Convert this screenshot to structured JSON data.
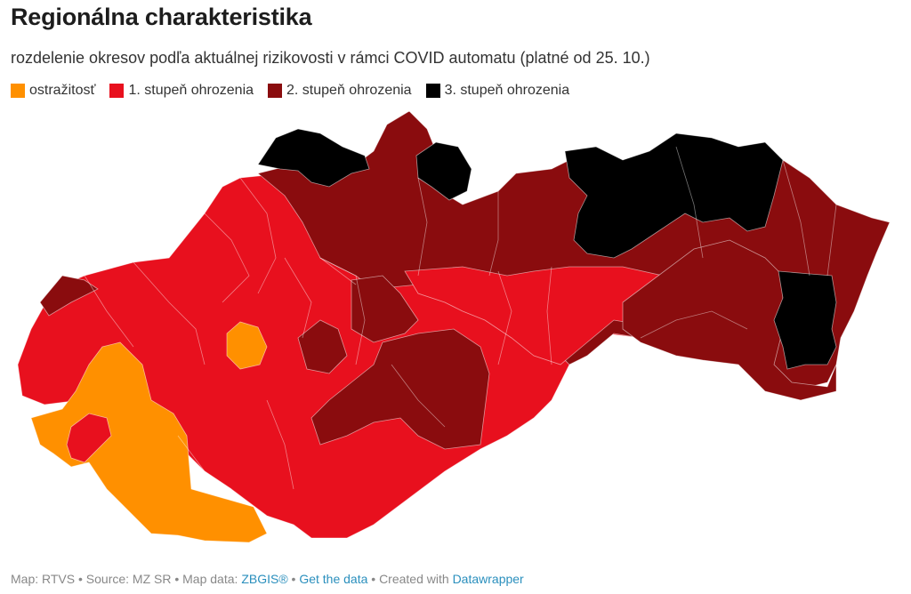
{
  "title": "Regionálna charakteristika",
  "subtitle": "rozdelenie okresov podľa aktuálnej rizikovosti v rámci COVID automatu (platné od 25. 10.)",
  "legend": [
    {
      "label": "ostražitosť",
      "color": "#ff9000"
    },
    {
      "label": "1. stupeň ohrozenia",
      "color": "#e8101e"
    },
    {
      "label": "2. stupeň ohrozenia",
      "color": "#8a0c0e"
    },
    {
      "label": "3. stupeň ohrozenia",
      "color": "#000000"
    }
  ],
  "footer": {
    "prefix": "Map: RTVS • Source: MZ SR • Map data: ",
    "zbgis": "ZBGIS®",
    "sep1": " • ",
    "get_data": "Get the data",
    "sep2": " • Created with ",
    "datawrapper": "Datawrapper"
  }
}
